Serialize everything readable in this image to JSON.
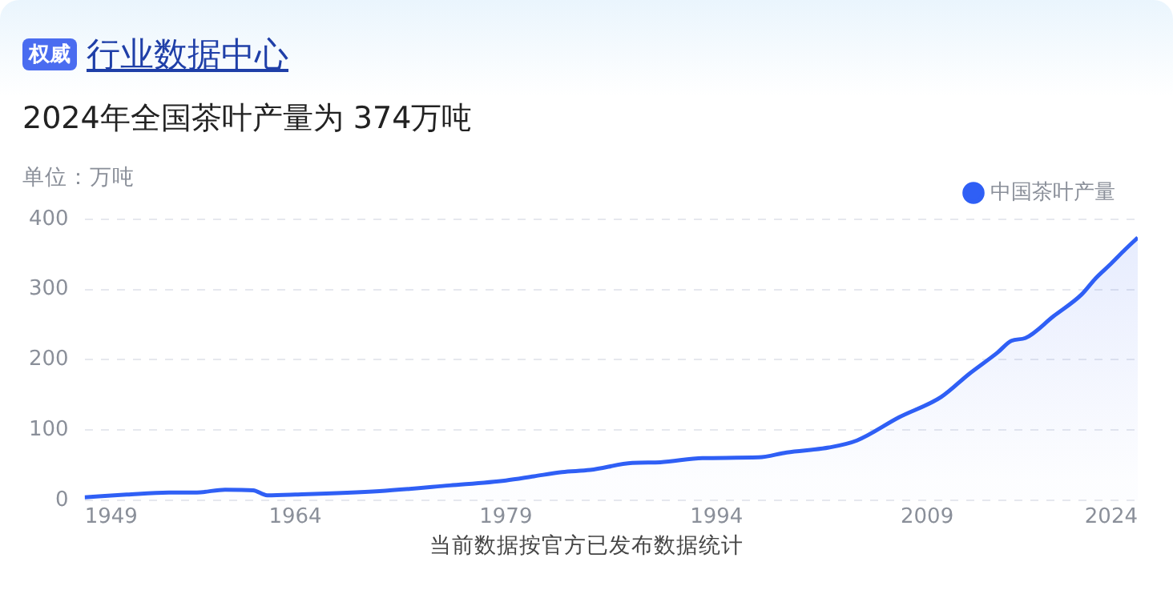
{
  "chart_data": {
    "type": "area",
    "title": "行业数据中心",
    "subtitle": "2024年全国茶叶产量为 374万吨",
    "ylabel": "单位：万吨",
    "annotations": [
      "权威",
      "当前数据按官方已发布数据统计"
    ],
    "x": [
      1949,
      1952,
      1955,
      1957,
      1959,
      1961,
      1962,
      1964,
      1970,
      1975,
      1979,
      1981,
      1983,
      1985,
      1988,
      1990,
      1993,
      1997,
      1999,
      2002,
      2004,
      2007,
      2010,
      2012,
      2014,
      2015,
      2016,
      2018,
      2020,
      2021,
      2022,
      2023,
      2024
    ],
    "series": [
      {
        "name": "中国茶叶产量",
        "color": "#2f5ff5",
        "values": [
          4,
          8,
          11,
          11,
          15,
          14,
          7,
          8,
          13,
          21,
          28,
          34,
          40,
          43,
          53,
          54,
          60,
          61,
          68,
          75,
          85,
          118,
          147,
          180,
          210,
          227,
          231,
          262,
          293,
          316,
          335,
          355,
          374
        ]
      }
    ],
    "xlim": [
      1949,
      2024
    ],
    "xticks": [
      1949,
      1964,
      1979,
      1994,
      2009,
      2024
    ],
    "ylim": [
      0,
      400
    ],
    "yticks": [
      0,
      100,
      200,
      300,
      400
    ],
    "grid": "y",
    "legend": "top right",
    "marker": "none",
    "line_style": "solid"
  }
}
